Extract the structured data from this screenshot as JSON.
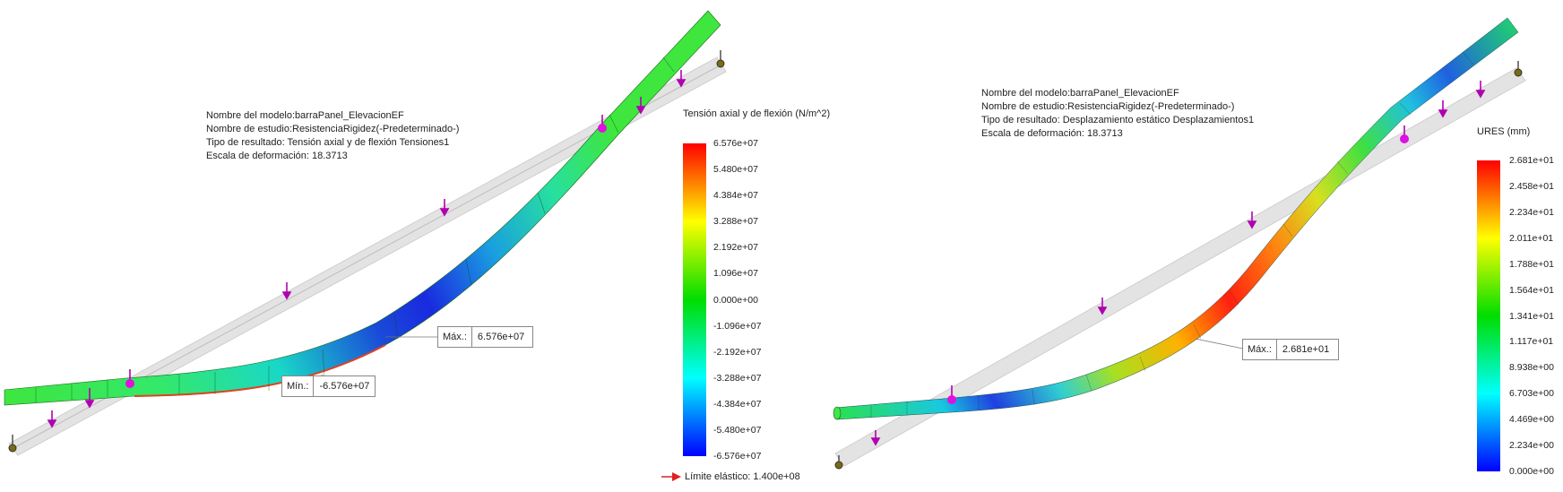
{
  "left": {
    "info": {
      "model": "Nombre del modelo:barraPanel_ElevacionEF",
      "study": "Nombre de estudio:ResistenciaRigidez(-Predeterminado-)",
      "result": "Tipo de resultado: Tensión axial y de flexión Tensiones1",
      "scale": "Escala de deformación: 18.3713"
    },
    "legend": {
      "title": "Tensión axial y de flexión (N/m^2)",
      "ticks": [
        "6.576e+07",
        "5.480e+07",
        "4.384e+07",
        "3.288e+07",
        "2.192e+07",
        "1.096e+07",
        "0.000e+00",
        "-1.096e+07",
        "-2.192e+07",
        "-3.288e+07",
        "-4.384e+07",
        "-5.480e+07",
        "-6.576e+07"
      ],
      "colors": [
        "#ff0000",
        "#ffff00",
        "#00dd00",
        "#00ffff",
        "#0000ff"
      ]
    },
    "max_probe": {
      "key": "Máx.:",
      "value": "6.576e+07"
    },
    "min_probe": {
      "key": "Mín.:",
      "value": "-6.576e+07"
    },
    "elastic": "Límite elástico: 1.400e+08"
  },
  "right": {
    "info": {
      "model": "Nombre del modelo:barraPanel_ElevacionEF",
      "study": "Nombre de estudio:ResistenciaRigidez(-Predeterminado-)",
      "result": "Tipo de resultado: Desplazamiento estático Desplazamientos1",
      "scale": "Escala de deformación: 18.3713"
    },
    "legend": {
      "title": "URES (mm)",
      "ticks": [
        "2.681e+01",
        "2.458e+01",
        "2.234e+01",
        "2.011e+01",
        "1.788e+01",
        "1.564e+01",
        "1.341e+01",
        "1.117e+01",
        "8.938e+00",
        "6.703e+00",
        "4.469e+00",
        "2.234e+00",
        "0.000e+00"
      ],
      "colors": [
        "#ff0000",
        "#ffff00",
        "#00dd00",
        "#00ffff",
        "#0000ff"
      ]
    },
    "max_probe": {
      "key": "Máx.:",
      "value": "2.681e+01"
    }
  }
}
